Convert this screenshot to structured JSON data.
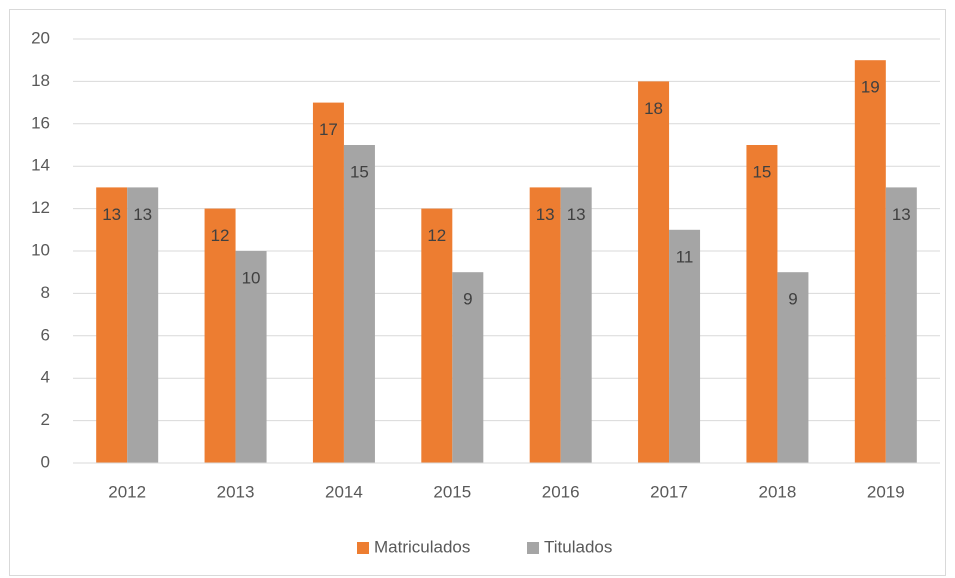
{
  "chart_data": {
    "type": "bar",
    "categories": [
      "2012",
      "2013",
      "2014",
      "2015",
      "2016",
      "2017",
      "2018",
      "2019"
    ],
    "series": [
      {
        "name": "Matriculados",
        "color": "#ed7d31",
        "values": [
          13,
          12,
          17,
          12,
          13,
          18,
          15,
          19
        ]
      },
      {
        "name": "Titulados",
        "color": "#a5a5a5",
        "values": [
          13,
          10,
          15,
          9,
          13,
          11,
          9,
          13
        ]
      }
    ],
    "ylim": [
      0,
      20
    ],
    "yticks": [
      0,
      2,
      4,
      6,
      8,
      10,
      12,
      14,
      16,
      18,
      20
    ],
    "grid": true,
    "legend": "bottom"
  }
}
